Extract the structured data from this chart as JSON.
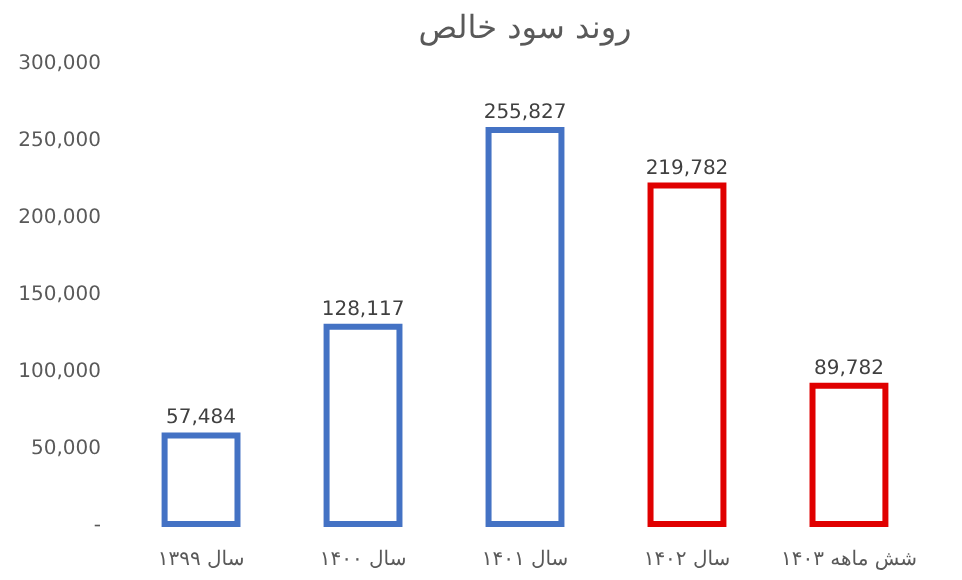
{
  "chart_data": {
    "type": "bar",
    "title": "روند سود خالص",
    "categories": [
      "سال ۱۳۹۹",
      "سال ۱۴۰۰",
      "سال ۱۴۰۱",
      "سال ۱۴۰۲",
      "شش ماهه ۱۴۰۳"
    ],
    "values": [
      57484,
      128117,
      255827,
      219782,
      89782
    ],
    "colors": [
      "#4472c4",
      "#4472c4",
      "#4472c4",
      "#e00000",
      "#e00000"
    ],
    "ylim": [
      0,
      300000
    ],
    "yticks": [
      {
        "value": 0,
        "label": "-"
      },
      {
        "value": 50000,
        "label": "50,000"
      },
      {
        "value": 100000,
        "label": "100,000"
      },
      {
        "value": 150000,
        "label": "150,000"
      },
      {
        "value": 200000,
        "label": "200,000"
      },
      {
        "value": 250000,
        "label": "250,000"
      },
      {
        "value": 300000,
        "label": "300,000"
      }
    ],
    "value_labels": [
      "57,484",
      "128,117",
      "255,827",
      "219,782",
      "89,782"
    ],
    "grid": false
  }
}
